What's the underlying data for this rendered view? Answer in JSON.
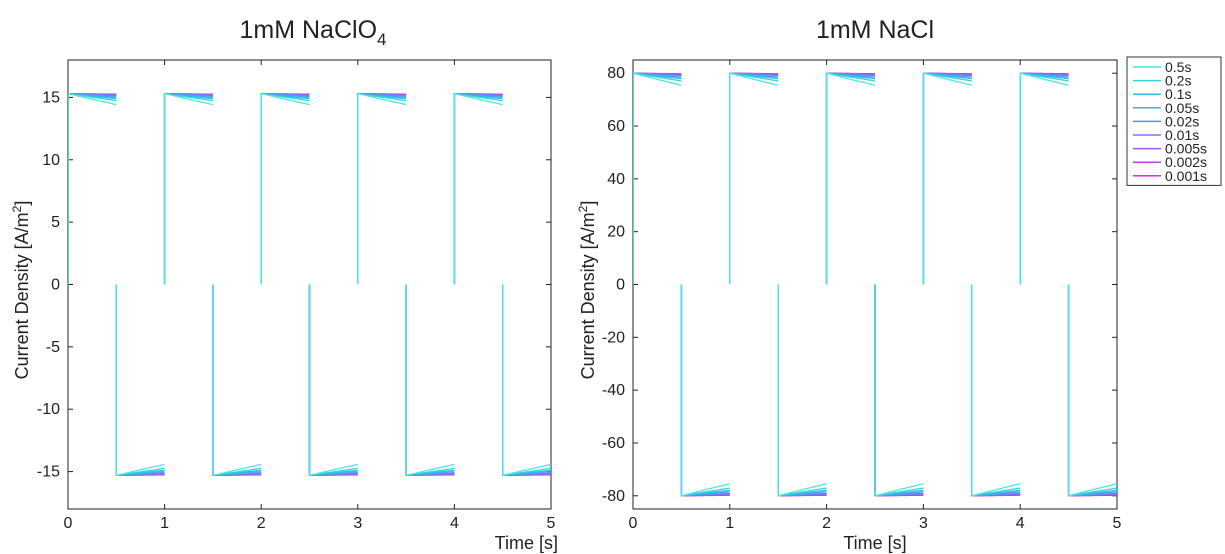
{
  "chart_data": [
    {
      "type": "line",
      "title": "1mM NaClO",
      "title_subscript": "4",
      "xlabel": "Time [s]",
      "ylabel": "Current Density [A/m",
      "ylabel_superscript": "2",
      "ylabel_close": "]",
      "xlim": [
        0,
        5
      ],
      "ylim": [
        -18,
        18
      ],
      "xticks": [
        0,
        1,
        2,
        3,
        4,
        5
      ],
      "yticks": [
        -15,
        -10,
        -5,
        0,
        5,
        10,
        15
      ],
      "grid": false,
      "pulse_period_s": 0.5,
      "peak_current": 15.3,
      "series": [
        {
          "name": "0.5s",
          "tau": 0.5,
          "amplitude": 15.3,
          "color": "#4fe3e6"
        },
        {
          "name": "0.2s",
          "tau": 0.2,
          "amplitude": 15.3,
          "color": "#37d2d8"
        },
        {
          "name": "0.1s",
          "tau": 0.1,
          "amplitude": 15.3,
          "color": "#27c0e3"
        },
        {
          "name": "0.05s",
          "tau": 0.05,
          "amplitude": 15.3,
          "color": "#45a8ee"
        },
        {
          "name": "0.02s",
          "tau": 0.02,
          "amplitude": 15.3,
          "color": "#6a86f0"
        },
        {
          "name": "0.01s",
          "tau": 0.01,
          "amplitude": 15.3,
          "color": "#8c6ff0"
        },
        {
          "name": "0.005s",
          "tau": 0.005,
          "amplitude": 15.3,
          "color": "#a552ee"
        },
        {
          "name": "0.002s",
          "tau": 0.002,
          "amplitude": 15.3,
          "color": "#c23ee9"
        },
        {
          "name": "0.001s",
          "tau": 0.001,
          "amplitude": 15.3,
          "color": "#e22ae6"
        }
      ]
    },
    {
      "type": "line",
      "title": "1mM NaCl",
      "xlabel": "Time [s]",
      "ylabel": "Current Density [A/m",
      "ylabel_superscript": "2",
      "ylabel_close": "]",
      "xlim": [
        0,
        5
      ],
      "ylim": [
        -85,
        85
      ],
      "xticks": [
        0,
        1,
        2,
        3,
        4,
        5
      ],
      "yticks": [
        -80,
        -60,
        -40,
        -20,
        0,
        20,
        40,
        60,
        80
      ],
      "grid": false,
      "pulse_period_s": 0.5,
      "peak_current": 80,
      "legend_position": "outside-top-right",
      "series": [
        {
          "name": "0.5s",
          "tau": 0.5,
          "amplitude": 80,
          "color": "#4fe3e6"
        },
        {
          "name": "0.2s",
          "tau": 0.2,
          "amplitude": 80,
          "color": "#37d2d8"
        },
        {
          "name": "0.1s",
          "tau": 0.1,
          "amplitude": 80,
          "color": "#27c0e3"
        },
        {
          "name": "0.05s",
          "tau": 0.05,
          "amplitude": 80,
          "color": "#45a8ee"
        },
        {
          "name": "0.02s",
          "tau": 0.02,
          "amplitude": 80,
          "color": "#6a86f0"
        },
        {
          "name": "0.01s",
          "tau": 0.01,
          "amplitude": 80,
          "color": "#8c6ff0"
        },
        {
          "name": "0.005s",
          "tau": 0.005,
          "amplitude": 80,
          "color": "#a552ee"
        },
        {
          "name": "0.002s",
          "tau": 0.002,
          "amplitude": 80,
          "color": "#c23ee9"
        },
        {
          "name": "0.001s",
          "tau": 0.001,
          "amplitude": 80,
          "color": "#e22ae6"
        }
      ]
    }
  ]
}
